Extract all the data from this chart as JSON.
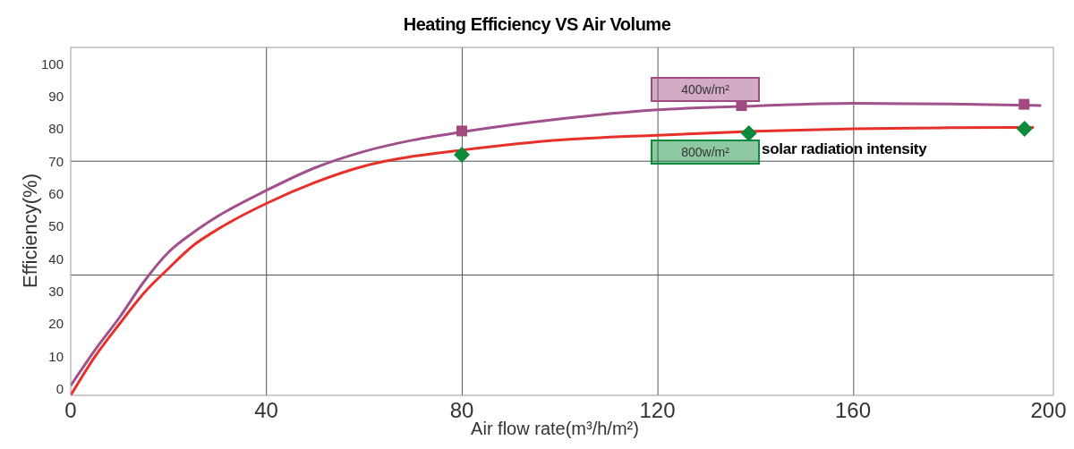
{
  "chart_data": {
    "type": "line",
    "title": "Heating Efficiency VS Air Volume",
    "xlabel": "Air flow rate(m³/h/m²)",
    "ylabel": "Efficiency(%)",
    "xlim": [
      0,
      201
    ],
    "xticks": [
      0,
      40,
      80,
      120,
      160,
      200
    ],
    "ylim": [
      -2,
      105
    ],
    "yticks": [
      0,
      10,
      20,
      30,
      40,
      50,
      60,
      70,
      80,
      90,
      100
    ],
    "grid": "x",
    "marker": "none",
    "line_style": "solid",
    "ref_lines": [
      {
        "axis": "y",
        "value": 35,
        "color": "#555555"
      },
      {
        "axis": "y",
        "value": 70,
        "color": "#555555"
      }
    ],
    "annotations": [
      "solar radiation intensity"
    ],
    "series": [
      {
        "color": "#a0508a",
        "x": [
          0,
          5,
          10,
          15,
          20,
          25,
          30,
          40,
          50,
          60,
          70,
          80,
          100,
          120,
          140,
          160,
          180,
          198.5
        ],
        "values": [
          1,
          12,
          22,
          33,
          42,
          48,
          53,
          61,
          68,
          73,
          76.5,
          79,
          83,
          85.8,
          87,
          87.8,
          87.6,
          87.1
        ]
      },
      {
        "color": "#e8302a",
        "x": [
          0,
          5,
          10,
          15,
          20,
          25,
          30,
          40,
          50,
          60,
          70,
          80,
          100,
          120,
          140,
          160,
          180,
          197
        ],
        "values": [
          -2,
          10,
          20,
          29.5,
          37,
          44,
          49,
          57,
          63.5,
          68.5,
          71.5,
          73.4,
          76.5,
          78,
          79.2,
          80,
          80.3,
          80.4
        ]
      },
      {
        "type": "scatter",
        "name": "400w/m²",
        "color": "#a04a80",
        "marker": "square",
        "x": [
          80,
          137.2,
          195
        ],
        "values": [
          79.3,
          87.1,
          87.5
        ]
      },
      {
        "type": "scatter",
        "name": "800w/m²",
        "color": "#0a8a3a",
        "marker": "diamond",
        "x": [
          80,
          138.7,
          195.1
        ],
        "values": [
          72,
          78.6,
          80
        ]
      }
    ]
  }
}
